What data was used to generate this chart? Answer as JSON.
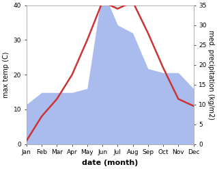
{
  "months": [
    "Jan",
    "Feb",
    "Mar",
    "Apr",
    "May",
    "Jun",
    "Jul",
    "Aug",
    "Sep",
    "Oct",
    "Nov",
    "Dec"
  ],
  "month_indices": [
    1,
    2,
    3,
    4,
    5,
    6,
    7,
    8,
    9,
    10,
    11,
    12
  ],
  "temperature": [
    1,
    8,
    13,
    20,
    30,
    41,
    39,
    41,
    32,
    22,
    13,
    11
  ],
  "precipitation": [
    10,
    13,
    13,
    13,
    14,
    39,
    30,
    28,
    19,
    18,
    18,
    14
  ],
  "temp_color": "#cc3333",
  "precip_color": "#aabbee",
  "temp_ylim": [
    0,
    40
  ],
  "temp_yticks": [
    0,
    10,
    20,
    30,
    40
  ],
  "precip_ylim": [
    0,
    35
  ],
  "precip_yticks": [
    0,
    5,
    10,
    15,
    20,
    25,
    30,
    35
  ],
  "ylabel_left": "max temp (C)",
  "ylabel_right": "med. precipitation (kg/m2)",
  "xlabel": "date (month)",
  "line_width": 1.8,
  "background_color": "#ffffff",
  "label_fontsize": 7,
  "tick_fontsize": 6.5
}
